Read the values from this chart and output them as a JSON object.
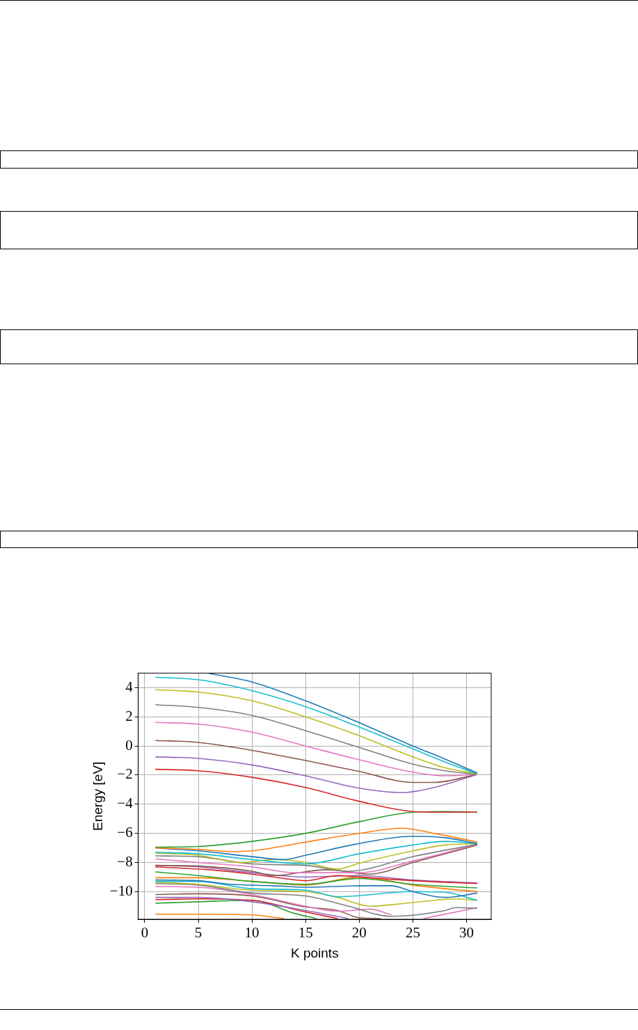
{
  "chart_data": {
    "type": "line",
    "xlabel": "K points",
    "ylabel": "Energy [eV]",
    "xlim": [
      -0.6,
      32.3
    ],
    "ylim": [
      -11.9,
      5
    ],
    "xticks": [
      0,
      5,
      10,
      15,
      20,
      25,
      30
    ],
    "yticks": [
      -10,
      -8,
      -6,
      -4,
      -2,
      0,
      2,
      4
    ],
    "grid": true,
    "legend": false,
    "marker": "none",
    "line_style": "solid",
    "series": [
      {
        "color": "#1f77b4",
        "x": [
          6,
          10,
          15,
          20,
          25,
          28,
          31
        ],
        "values": [
          4.98,
          4.4,
          3.1,
          1.6,
          0,
          -0.9,
          -1.85
        ]
      },
      {
        "color": "#17becf",
        "x": [
          1,
          5,
          10,
          15,
          20,
          25,
          28,
          31
        ],
        "values": [
          4.72,
          4.55,
          3.8,
          2.7,
          1.3,
          -0.2,
          -1.1,
          -1.9
        ]
      },
      {
        "color": "#bcbd22",
        "x": [
          1,
          5,
          10,
          15,
          20,
          25,
          28,
          31
        ],
        "values": [
          3.87,
          3.7,
          3.1,
          2.0,
          0.7,
          -0.75,
          -1.5,
          -1.9
        ]
      },
      {
        "color": "#7f7f7f",
        "x": [
          1,
          5,
          10,
          15,
          20,
          25,
          28,
          31
        ],
        "values": [
          2.83,
          2.65,
          2.1,
          1.05,
          -0.1,
          -1.25,
          -1.7,
          -1.95
        ]
      },
      {
        "color": "#e377c2",
        "x": [
          1,
          5,
          10,
          15,
          20,
          25,
          28,
          31
        ],
        "values": [
          1.62,
          1.5,
          0.95,
          0,
          -0.95,
          -1.8,
          -2.05,
          -1.95
        ]
      },
      {
        "color": "#8c564b",
        "x": [
          1,
          5,
          10,
          15,
          20,
          25,
          27,
          31
        ],
        "values": [
          0.38,
          0.25,
          -0.3,
          -1.0,
          -1.75,
          -2.5,
          -2.5,
          -1.95
        ]
      },
      {
        "color": "#9467bd",
        "x": [
          1,
          5,
          10,
          15,
          20,
          24,
          27,
          31
        ],
        "values": [
          -0.75,
          -0.85,
          -1.3,
          -2.05,
          -2.9,
          -3.2,
          -2.85,
          -1.95
        ]
      },
      {
        "color": "#d62728",
        "x": [
          1,
          5,
          10,
          15,
          20,
          25,
          28,
          31
        ],
        "values": [
          -1.6,
          -1.7,
          -2.15,
          -2.85,
          -3.8,
          -4.5,
          -4.55,
          -4.55
        ]
      },
      {
        "color": "#2ca02c",
        "x": [
          1,
          5,
          10,
          15,
          20,
          25,
          28,
          31
        ],
        "values": [
          -6.95,
          -6.9,
          -6.55,
          -6.0,
          -5.2,
          -4.55,
          -4.5,
          -4.55
        ]
      },
      {
        "color": "#ff7f0e",
        "x": [
          1,
          5,
          8,
          10,
          15,
          20,
          24,
          27,
          31
        ],
        "values": [
          -7.0,
          -7.1,
          -7.25,
          -7.2,
          -6.6,
          -6.0,
          -5.65,
          -6.0,
          -6.6
        ]
      },
      {
        "color": "#1f77b4",
        "x": [
          1,
          5,
          10,
          13,
          15,
          20,
          25,
          28,
          31
        ],
        "values": [
          -7.0,
          -7.2,
          -7.6,
          -7.8,
          -7.5,
          -6.7,
          -6.2,
          -6.3,
          -6.7
        ]
      },
      {
        "color": "#17becf",
        "x": [
          1,
          5,
          10,
          15,
          20,
          25,
          28,
          31
        ],
        "values": [
          -7.3,
          -7.4,
          -7.8,
          -8.1,
          -7.4,
          -6.8,
          -6.55,
          -6.7
        ]
      },
      {
        "color": "#bcbd22",
        "x": [
          1,
          5,
          9,
          12,
          15,
          18,
          20,
          25,
          28,
          31
        ],
        "values": [
          -7.35,
          -7.5,
          -8.0,
          -7.8,
          -8.0,
          -8.45,
          -8.05,
          -7.2,
          -6.8,
          -6.7
        ]
      },
      {
        "color": "#7f7f7f",
        "x": [
          1,
          5,
          10,
          15,
          19,
          25,
          31
        ],
        "values": [
          -7.55,
          -7.6,
          -8.1,
          -8.2,
          -8.6,
          -7.6,
          -6.75
        ]
      },
      {
        "color": "#e377c2",
        "x": [
          1,
          5,
          10,
          14,
          20,
          25,
          31
        ],
        "values": [
          -7.75,
          -8.0,
          -8.3,
          -8.7,
          -8.7,
          -7.9,
          -6.75
        ]
      },
      {
        "color": "#8c564b",
        "x": [
          1,
          5,
          10,
          12,
          17,
          21,
          25,
          31
        ],
        "values": [
          -8.2,
          -8.25,
          -8.6,
          -8.9,
          -8.5,
          -8.8,
          -8.0,
          -6.8
        ]
      },
      {
        "color": "#d62728",
        "x": [
          1,
          6,
          10,
          13,
          15,
          18,
          20,
          25,
          31
        ],
        "values": [
          -8.3,
          -8.5,
          -8.8,
          -9.1,
          -9.25,
          -8.9,
          -9.0,
          -9.25,
          -9.45
        ]
      },
      {
        "color": "#9467bd",
        "x": [
          1,
          5,
          10,
          15,
          20,
          25,
          31
        ],
        "values": [
          -8.2,
          -8.3,
          -8.7,
          -9.0,
          -8.9,
          -9.2,
          -9.4
        ]
      },
      {
        "color": "#2ca02c",
        "x": [
          1,
          5,
          10,
          15,
          20,
          25,
          31
        ],
        "values": [
          -8.65,
          -8.9,
          -9.3,
          -9.5,
          -9.1,
          -9.5,
          -9.75
        ]
      },
      {
        "color": "#ff7f0e",
        "x": [
          1,
          5,
          10,
          15,
          20,
          25,
          28,
          31
        ],
        "values": [
          -9.05,
          -9.05,
          -9.3,
          -9.55,
          -9.0,
          -9.55,
          -9.8,
          -10.0
        ]
      },
      {
        "color": "#1f77b4",
        "x": [
          1,
          5,
          8,
          12,
          15,
          20,
          23,
          25,
          28,
          31
        ],
        "values": [
          -9.2,
          -9.25,
          -9.5,
          -9.6,
          -9.7,
          -9.6,
          -9.6,
          -10.0,
          -10.4,
          -10.1
        ]
      },
      {
        "color": "#17becf",
        "x": [
          1,
          5,
          10,
          15,
          18,
          25,
          28,
          31
        ],
        "values": [
          -9.3,
          -9.3,
          -9.8,
          -9.9,
          -10.35,
          -10.0,
          -10.05,
          -10.6
        ]
      },
      {
        "color": "#bcbd22",
        "x": [
          1,
          5,
          10,
          15,
          18,
          21,
          25,
          29,
          31
        ],
        "values": [
          -9.35,
          -9.5,
          -9.9,
          -10.0,
          -10.4,
          -11.0,
          -10.75,
          -10.5,
          -10.6
        ]
      },
      {
        "color": "#7f7f7f",
        "x": [
          1,
          5,
          10,
          15,
          19,
          23,
          28,
          29,
          31
        ],
        "values": [
          -9.45,
          -9.55,
          -10.1,
          -10.3,
          -11.0,
          -11.7,
          -11.3,
          -11.1,
          -11.15
        ]
      },
      {
        "color": "#e377c2",
        "x": [
          1,
          5,
          10,
          15,
          18,
          21,
          23,
          24,
          26,
          31
        ],
        "values": [
          -9.65,
          -9.7,
          -10.2,
          -11.0,
          -11.35,
          -11.2,
          -11.6,
          null,
          -11.85,
          -11.1
        ]
      },
      {
        "color": "#8c564b",
        "x": [
          1,
          5,
          10,
          15,
          18,
          20,
          22
        ],
        "values": [
          -10.2,
          -10.15,
          -10.3,
          -11.05,
          -11.3,
          -11.8,
          -11.85
        ]
      },
      {
        "color": "#9467bd",
        "x": [
          1,
          5,
          10,
          15,
          19
        ],
        "values": [
          -10.4,
          -10.4,
          -10.7,
          -11.3,
          -11.85
        ]
      },
      {
        "color": "#d62728",
        "x": [
          1,
          5,
          10,
          15,
          18
        ],
        "values": [
          -10.55,
          -10.5,
          -10.6,
          -11.4,
          -11.85
        ]
      },
      {
        "color": "#2ca02c",
        "x": [
          1,
          5,
          10,
          14,
          16
        ],
        "values": [
          -10.8,
          -10.7,
          -10.6,
          -11.5,
          -11.85
        ]
      },
      {
        "color": "#ff7f0e",
        "x": [
          1,
          5,
          10,
          13
        ],
        "values": [
          -11.55,
          -11.55,
          -11.6,
          -11.85
        ]
      }
    ]
  }
}
